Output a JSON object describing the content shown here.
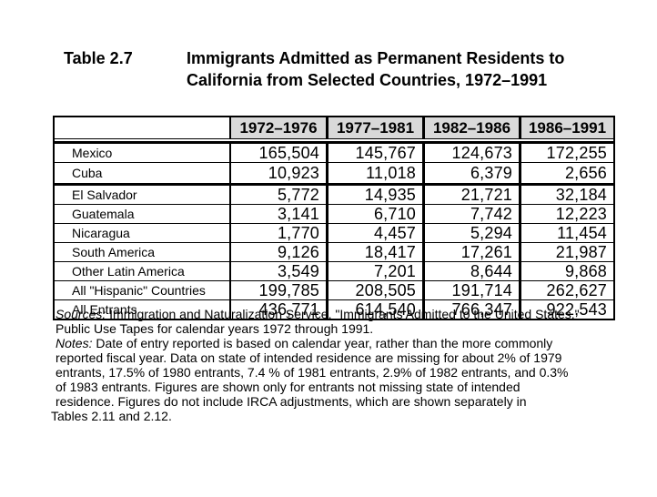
{
  "title": {
    "label": "Table 2.7",
    "line1": "Immigrants Admitted as Permanent Residents to",
    "line2": "California from Selected Countries, 1972–1991"
  },
  "table": {
    "header_bg": "#d9d9d9",
    "columns": [
      "1972–1976",
      "1977–1981",
      "1982–1986",
      "1986–1991"
    ],
    "rows": [
      {
        "label": "Mexico",
        "values": [
          "165,504",
          "145,767",
          "124,673",
          "172,255"
        ]
      },
      {
        "label": "Cuba",
        "values": [
          "10,923",
          "11,018",
          "6,379",
          "2,656"
        ]
      },
      {
        "label": "El Salvador",
        "values": [
          "5,772",
          "14,935",
          "21,721",
          "32,184"
        ]
      },
      {
        "label": "Guatemala",
        "values": [
          "3,141",
          "6,710",
          "7,742",
          "12,223"
        ]
      },
      {
        "label": "Nicaragua",
        "values": [
          "1,770",
          "4,457",
          "5,294",
          "11,454"
        ]
      },
      {
        "label": "South America",
        "values": [
          "9,126",
          "18,417",
          "17,261",
          "21,987"
        ]
      },
      {
        "label": "Other Latin America",
        "values": [
          "3,549",
          "7,201",
          "8,644",
          "9,868"
        ]
      },
      {
        "label": "All \"Hispanic\" Countries",
        "values": [
          "199,785",
          "208,505",
          "191,714",
          "262,627"
        ]
      },
      {
        "label": "All Entrants",
        "values": [
          "436,771",
          "614,540",
          "766,347",
          "922,543"
        ]
      }
    ],
    "thick_divider_after": "Cuba"
  },
  "footnotes": {
    "sources_label": "Sources:",
    "sources_lines": [
      "Immigration and Naturalization Service, \"Immigrants Admitted to the United States,\"",
      "Public Use Tapes for calendar years 1972 through 1991."
    ],
    "notes_label": "Notes:",
    "notes_lines": [
      "Date of entry reported is based on calendar year, rather than the more commonly",
      "reported fiscal year. Data on state of intended residence are missing for about 2% of 1979",
      "entrants, 17.5% of 1980 entrants, 7.4 % of 1981 entrants, 2.9% of 1982 entrants, and 0.3%",
      "of 1983 entrants. Figures are shown only for entrants not missing state of intended",
      "residence. Figures do not include IRCA adjustments, which are shown separately in",
      "Tables 2.11 and 2.12."
    ]
  }
}
